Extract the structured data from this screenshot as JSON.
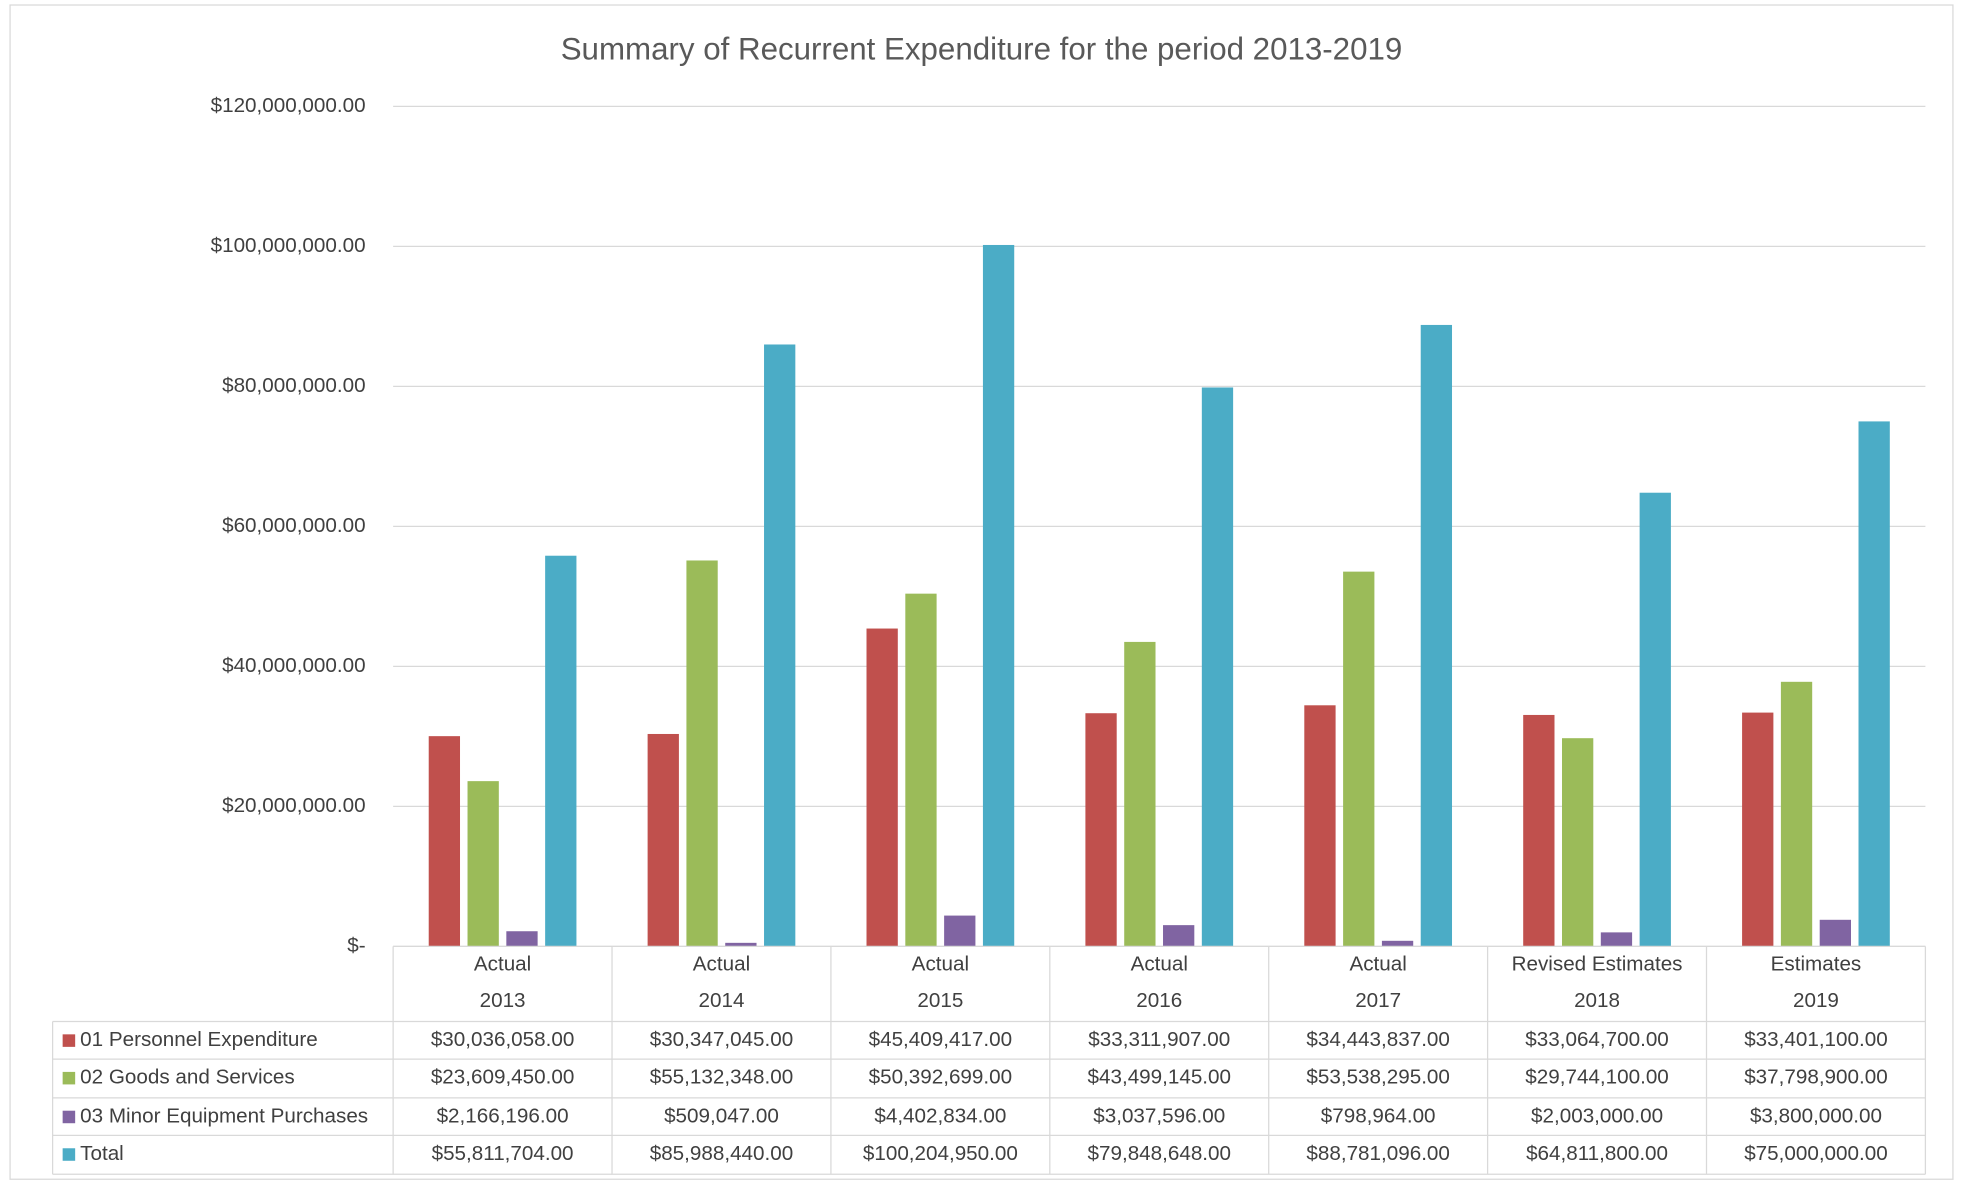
{
  "chart_data": {
    "type": "bar",
    "title": "Summary of Recurrent Expenditure for the period 2013-2019",
    "categories": [
      [
        "Actual",
        "2013"
      ],
      [
        "Actual",
        "2014"
      ],
      [
        "Actual",
        "2015"
      ],
      [
        "Actual",
        "2016"
      ],
      [
        "Actual",
        "2017"
      ],
      [
        "Revised Estimates",
        "2018"
      ],
      [
        "Estimates",
        "2019"
      ]
    ],
    "series": [
      {
        "name": "01 Personnel Expenditure",
        "color": "#c0504d",
        "values": [
          30036058,
          30347045,
          45409417,
          33311907,
          34443837,
          33064700,
          33401100
        ],
        "value_labels": [
          "$30,036,058.00",
          "$30,347,045.00",
          "$45,409,417.00",
          "$33,311,907.00",
          "$34,443,837.00",
          "$33,064,700.00",
          "$33,401,100.00"
        ]
      },
      {
        "name": "02 Goods and Services",
        "color": "#9bbb59",
        "values": [
          23609450,
          55132348,
          50392699,
          43499145,
          53538295,
          29744100,
          37798900
        ],
        "value_labels": [
          "$23,609,450.00",
          "$55,132,348.00",
          "$50,392,699.00",
          "$43,499,145.00",
          "$53,538,295.00",
          "$29,744,100.00",
          "$37,798,900.00"
        ]
      },
      {
        "name": "03 Minor Equipment Purchases",
        "color": "#8064a2",
        "values": [
          2166196,
          509047,
          4402834,
          3037596,
          798964,
          2003000,
          3800000
        ],
        "value_labels": [
          "$2,166,196.00",
          "$509,047.00",
          "$4,402,834.00",
          "$3,037,596.00",
          "$798,964.00",
          "$2,003,000.00",
          "$3,800,000.00"
        ]
      },
      {
        "name": "Total",
        "color": "#4bacc6",
        "values": [
          55811704,
          85988440,
          100204950,
          79848648,
          88781096,
          64811800,
          75000000
        ],
        "value_labels": [
          "$55,811,704.00",
          "$85,988,440.00",
          "$100,204,950.00",
          "$79,848,648.00",
          "$88,781,096.00",
          "$64,811,800.00",
          "$75,000,000.00"
        ]
      }
    ],
    "ylim": [
      0,
      120000000
    ],
    "yticks": [
      {
        "value": 0,
        "label": "$-"
      },
      {
        "value": 20000000,
        "label": "$20,000,000.00"
      },
      {
        "value": 40000000,
        "label": "$40,000,000.00"
      },
      {
        "value": 60000000,
        "label": "$60,000,000.00"
      },
      {
        "value": 80000000,
        "label": "$80,000,000.00"
      },
      {
        "value": 100000000,
        "label": "$100,000,000.00"
      },
      {
        "value": 120000000,
        "label": "$120,000,000.00"
      }
    ],
    "grid": true
  }
}
